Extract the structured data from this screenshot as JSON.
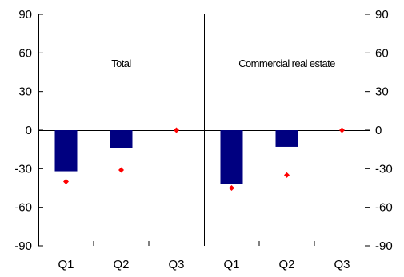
{
  "chart_data": {
    "type": "bar",
    "title": "",
    "xlabel": "",
    "ylabel": "",
    "ylim": [
      -90,
      90
    ],
    "yticks": [
      90,
      60,
      30,
      0,
      -30,
      -60,
      -90
    ],
    "grid": false,
    "legend": "none",
    "panels": [
      {
        "title": "Total",
        "categories": [
          "Q1",
          "Q2",
          "Q3"
        ],
        "series": [
          {
            "kind": "bar",
            "color": "#000080",
            "values": [
              -32,
              -14,
              0
            ]
          },
          {
            "kind": "marker",
            "marker": "diamond",
            "color": "#ff0000",
            "values": [
              -40,
              -31,
              0
            ]
          }
        ]
      },
      {
        "title": "Commercial real estate",
        "categories": [
          "Q1",
          "Q2",
          "Q3"
        ],
        "series": [
          {
            "kind": "bar",
            "color": "#000080",
            "values": [
              -42,
              -13,
              0
            ]
          },
          {
            "kind": "marker",
            "marker": "diamond",
            "color": "#ff0000",
            "values": [
              -45,
              -35,
              0
            ]
          }
        ]
      }
    ]
  }
}
